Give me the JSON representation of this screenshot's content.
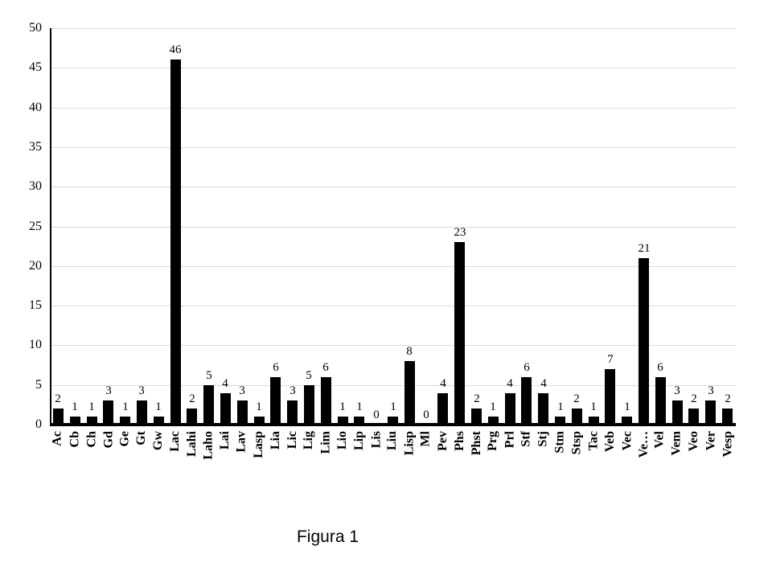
{
  "figure": {
    "caption": "Figura 1"
  },
  "chart_data": {
    "type": "bar",
    "title": "",
    "xlabel": "",
    "ylabel": "",
    "categories": [
      "Ac",
      "Cb",
      "Ch",
      "Gd",
      "Ge",
      "Gt",
      "Gw",
      "Lac",
      "Lahi",
      "Laho",
      "Lai",
      "Lav",
      "Lasp",
      "Lia",
      "Lic",
      "Lig",
      "Lim",
      "Lio",
      "Lip",
      "Lis",
      "Liu",
      "Lisp",
      "Ml",
      "Pev",
      "Phs",
      "Phst",
      "Prg",
      "Prl",
      "Stf",
      "Stj",
      "Stm",
      "Stsp",
      "Tac",
      "Veb",
      "Vec",
      "Ve…",
      "Vel",
      "Vem",
      "Veo",
      "Ver",
      "Vesp"
    ],
    "values": [
      2,
      1,
      1,
      3,
      1,
      3,
      1,
      46,
      2,
      5,
      4,
      3,
      1,
      6,
      3,
      5,
      6,
      1,
      1,
      0,
      1,
      8,
      0,
      4,
      23,
      2,
      1,
      4,
      6,
      4,
      1,
      2,
      1,
      7,
      1,
      21,
      6,
      3,
      2,
      3,
      2
    ],
    "value_labels_shown": true,
    "ylim": [
      0,
      50
    ],
    "ytick_step": 5,
    "y_ticks": [
      0,
      5,
      10,
      15,
      20,
      25,
      30,
      35,
      40,
      45,
      50
    ],
    "grid": "horizontal",
    "legend": "none",
    "bar_color": "#000000",
    "gridline_color": "#d9d9d9",
    "axis_color": "#000000"
  }
}
